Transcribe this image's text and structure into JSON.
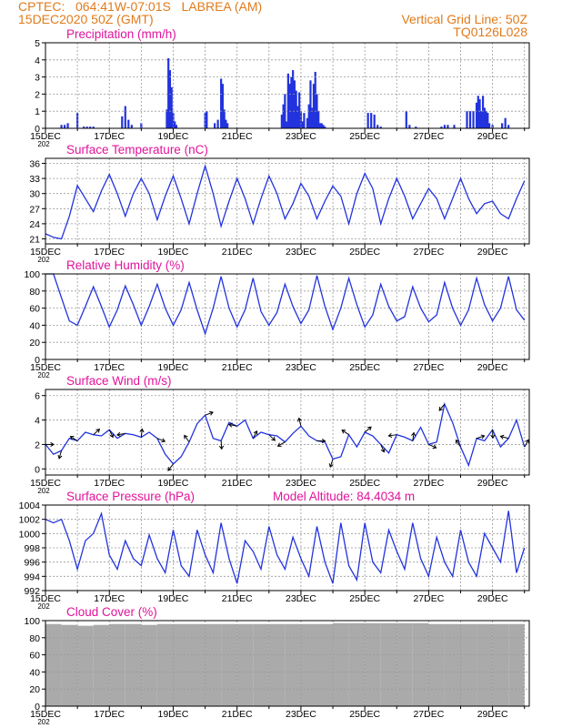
{
  "header": {
    "left_line1": "CPTEC:   064:41W-07:01S   LABREA (AM)",
    "left_line2": "15DEC2020 50Z (GMT)",
    "right_line1": "Vertical Grid Line: 50Z",
    "right_line2": "TQ0126L028",
    "model_altitude": "Model Altitude: 84.4034 m"
  },
  "colors": {
    "line": "#2233dd",
    "title": "#e0149a",
    "header": "#e07b1c",
    "grid": "#999999",
    "cloud": "#aaaaaa",
    "arrow": "#000000"
  },
  "x_ticks": [
    "15DEC",
    "17DEC",
    "19DEC",
    "21DEC",
    "23DEC",
    "25DEC",
    "27DEC",
    "29DEC"
  ],
  "x_year_fragment": "202",
  "chart_data": [
    {
      "id": "precip",
      "type": "bar",
      "title": "Precipitation (mm/h)",
      "ylim": [
        0,
        5
      ],
      "yticks": [
        0,
        1,
        2,
        3,
        4,
        5
      ],
      "x": [
        0.5,
        0.6,
        0.7,
        1.0,
        1.2,
        1.3,
        1.4,
        1.5,
        2.4,
        2.5,
        2.6,
        2.7,
        3.0,
        3.8,
        3.85,
        3.9,
        3.95,
        4.0,
        4.05,
        4.1,
        5.0,
        5.05,
        5.3,
        5.4,
        5.5,
        5.55,
        5.6,
        5.65,
        5.7,
        7.4,
        7.45,
        7.5,
        7.55,
        7.6,
        7.65,
        7.7,
        7.75,
        7.8,
        7.85,
        7.9,
        7.95,
        8.0,
        8.05,
        8.1,
        8.2,
        8.25,
        8.3,
        8.35,
        8.4,
        8.45,
        8.5,
        8.55,
        8.6,
        8.65,
        8.7,
        8.75,
        10.1,
        10.2,
        10.3,
        10.4,
        10.5,
        11.3,
        11.4,
        11.6,
        12.4,
        12.5,
        12.6,
        12.8,
        13.2,
        13.3,
        13.4,
        13.5,
        13.55,
        13.6,
        13.65,
        13.7,
        13.75,
        13.8,
        13.85,
        13.9,
        14.0,
        14.3,
        14.4,
        14.5
      ],
      "values": [
        0.2,
        0.2,
        0.3,
        0.9,
        0.1,
        0.1,
        0.1,
        0.1,
        0.7,
        1.3,
        0.5,
        0.2,
        0.3,
        1.1,
        4.1,
        3.4,
        2.4,
        0.9,
        0.4,
        0.2,
        0.9,
        1.0,
        0.3,
        0.5,
        2.9,
        2.6,
        1.1,
        0.5,
        0.3,
        0.8,
        1.4,
        2.0,
        0.4,
        3.2,
        2.6,
        3.0,
        3.4,
        2.8,
        2.2,
        1.3,
        2.1,
        1.0,
        0.4,
        0.9,
        0.6,
        1.4,
        2.8,
        1.2,
        2.6,
        3.3,
        2.0,
        1.0,
        0.3,
        0.3,
        0.2,
        0.1,
        0.9,
        0.9,
        0.8,
        0.2,
        0.1,
        1.0,
        0.2,
        0.1,
        0.1,
        0.2,
        0.2,
        0.2,
        1.0,
        1.0,
        1.0,
        1.5,
        1.9,
        1.7,
        1.0,
        1.9,
        1.2,
        1.0,
        0.9,
        0.3,
        0.2,
        0.3,
        0.6,
        0.2
      ]
    },
    {
      "id": "temp",
      "type": "line",
      "title": "Surface Temperature (nC)",
      "ylim": [
        20,
        37
      ],
      "yticks": [
        21,
        24,
        27,
        30,
        33,
        36
      ],
      "x": [
        0,
        0.25,
        0.5,
        0.75,
        1.0,
        1.25,
        1.5,
        1.75,
        2.0,
        2.25,
        2.5,
        2.75,
        3.0,
        3.25,
        3.5,
        3.75,
        4.0,
        4.25,
        4.5,
        4.75,
        5.0,
        5.25,
        5.5,
        5.75,
        6.0,
        6.25,
        6.5,
        6.75,
        7.0,
        7.25,
        7.5,
        7.75,
        8.0,
        8.25,
        8.5,
        8.75,
        9.0,
        9.25,
        9.5,
        9.75,
        10.0,
        10.25,
        10.5,
        10.75,
        11.0,
        11.25,
        11.5,
        11.75,
        12.0,
        12.25,
        12.5,
        12.75,
        13.0,
        13.25,
        13.5,
        13.75,
        14.0,
        14.25,
        14.5,
        14.75,
        15.0
      ],
      "values": [
        22.0,
        21.3,
        21.0,
        25.5,
        31.6,
        29.0,
        26.4,
        30.5,
        33.8,
        30.0,
        25.5,
        30.0,
        33.0,
        30.0,
        24.8,
        29.5,
        33.5,
        29.0,
        24.0,
        30.0,
        35.5,
        30.0,
        23.5,
        28.5,
        33.0,
        29.0,
        24.0,
        29.0,
        33.5,
        30.0,
        25.0,
        28.0,
        32.0,
        29.5,
        25.0,
        28.5,
        31.5,
        29.5,
        24.0,
        30.0,
        34.0,
        31.0,
        24.0,
        29.0,
        33.0,
        29.5,
        25.0,
        28.0,
        31.0,
        29.0,
        25.0,
        29.0,
        33.0,
        29.0,
        26.0,
        28.0,
        28.5,
        26.0,
        25.0,
        29.0,
        32.5
      ]
    },
    {
      "id": "rh",
      "type": "line",
      "title": "Relative Humidity (%)",
      "ylim": [
        0,
        100
      ],
      "yticks": [
        0,
        20,
        40,
        60,
        80,
        100
      ],
      "x": [
        0,
        0.25,
        0.5,
        0.75,
        1.0,
        1.25,
        1.5,
        1.75,
        2.0,
        2.25,
        2.5,
        2.75,
        3.0,
        3.25,
        3.5,
        3.75,
        4.0,
        4.25,
        4.5,
        4.75,
        5.0,
        5.25,
        5.5,
        5.75,
        6.0,
        6.25,
        6.5,
        6.75,
        7.0,
        7.25,
        7.5,
        7.75,
        8.0,
        8.25,
        8.5,
        8.75,
        9.0,
        9.25,
        9.5,
        9.75,
        10.0,
        10.25,
        10.5,
        10.75,
        11.0,
        11.25,
        11.5,
        11.75,
        12.0,
        12.25,
        12.5,
        12.75,
        13.0,
        13.25,
        13.5,
        13.75,
        14.0,
        14.25,
        14.5,
        14.75,
        15.0
      ],
      "values": [
        100,
        100,
        72,
        45,
        40,
        62,
        85,
        62,
        38,
        58,
        86,
        64,
        40,
        62,
        88,
        60,
        40,
        58,
        90,
        58,
        30,
        60,
        97,
        60,
        38,
        58,
        95,
        56,
        40,
        55,
        88,
        62,
        42,
        58,
        98,
        62,
        35,
        60,
        95,
        64,
        38,
        52,
        88,
        62,
        45,
        50,
        85,
        60,
        44,
        52,
        90,
        60,
        40,
        58,
        95,
        64,
        45,
        60,
        97,
        58,
        46
      ]
    },
    {
      "id": "wind",
      "type": "line",
      "title": "Surface Wind (m/s)",
      "ylim": [
        -0.5,
        6.5
      ],
      "yticks": [
        0,
        2,
        4,
        6
      ],
      "x": [
        0,
        0.25,
        0.5,
        0.75,
        1.0,
        1.25,
        1.5,
        1.75,
        2.0,
        2.25,
        2.5,
        2.75,
        3.0,
        3.25,
        3.5,
        3.75,
        4.0,
        4.25,
        4.5,
        4.75,
        5.0,
        5.25,
        5.5,
        5.75,
        6.0,
        6.25,
        6.5,
        6.75,
        7.0,
        7.25,
        7.5,
        7.75,
        8.0,
        8.25,
        8.5,
        8.75,
        9.0,
        9.25,
        9.5,
        9.75,
        10.0,
        10.25,
        10.5,
        10.75,
        11.0,
        11.25,
        11.5,
        11.75,
        12.0,
        12.25,
        12.5,
        12.75,
        13.0,
        13.25,
        13.5,
        13.75,
        14.0,
        14.25,
        14.5,
        14.75,
        15.0
      ],
      "values": [
        2.0,
        1.2,
        1.5,
        2.5,
        2.3,
        3.0,
        2.8,
        2.7,
        3.2,
        2.5,
        2.9,
        2.8,
        2.6,
        3.0,
        2.5,
        1.2,
        0.4,
        1.0,
        2.2,
        3.7,
        4.4,
        2.5,
        2.3,
        3.8,
        3.5,
        4.0,
        2.5,
        3.0,
        2.8,
        2.7,
        2.2,
        2.9,
        3.5,
        2.7,
        2.3,
        2.2,
        0.8,
        1.0,
        2.8,
        1.8,
        3.0,
        2.7,
        2.0,
        1.3,
        2.8,
        2.6,
        2.3,
        3.4,
        2.0,
        2.2,
        5.3,
        3.8,
        1.8,
        0.3,
        2.5,
        2.3,
        3.2,
        1.8,
        2.5,
        4.0,
        1.8
      ]
    },
    {
      "id": "pressure",
      "type": "line",
      "title": "Surface Pressure (hPa)",
      "ylim": [
        992,
        1004
      ],
      "yticks": [
        992,
        994,
        996,
        998,
        1000,
        1002,
        1004
      ],
      "x": [
        0,
        0.25,
        0.5,
        0.75,
        1.0,
        1.25,
        1.5,
        1.75,
        2.0,
        2.25,
        2.5,
        2.75,
        3.0,
        3.25,
        3.5,
        3.75,
        4.0,
        4.25,
        4.5,
        4.75,
        5.0,
        5.25,
        5.5,
        5.75,
        6.0,
        6.25,
        6.5,
        6.75,
        7.0,
        7.25,
        7.5,
        7.75,
        8.0,
        8.25,
        8.5,
        8.75,
        9.0,
        9.25,
        9.5,
        9.75,
        10.0,
        10.25,
        10.5,
        10.75,
        11.0,
        11.25,
        11.5,
        11.75,
        12.0,
        12.25,
        12.5,
        12.75,
        13.0,
        13.25,
        13.5,
        13.75,
        14.0,
        14.25,
        14.5,
        14.75,
        15.0
      ],
      "values": [
        1002.0,
        1001.5,
        1002.0,
        999.0,
        995.0,
        999.0,
        1000.0,
        1002.8,
        997.0,
        995.0,
        999.0,
        996.5,
        995.5,
        999.8,
        996.5,
        994.5,
        1000.5,
        995.5,
        994.0,
        1000.5,
        997.0,
        994.5,
        1001.5,
        996.5,
        993.0,
        999.0,
        997.5,
        995.0,
        1001.0,
        997.0,
        995.0,
        999.5,
        996.5,
        994.0,
        1001.0,
        996.0,
        993.0,
        1001.5,
        995.5,
        993.5,
        1001.5,
        996.0,
        994.5,
        1000.5,
        997.5,
        995.0,
        1001.5,
        996.5,
        994.0,
        999.5,
        996.0,
        994.0,
        1000.5,
        996.0,
        994.0,
        1000.0,
        998.0,
        996.0,
        1003.2,
        994.5,
        998.0
      ]
    },
    {
      "id": "cloud",
      "type": "bar",
      "title": "Cloud Cover (%)",
      "ylim": [
        0,
        100
      ],
      "yticks": [
        0,
        20,
        40,
        60,
        80,
        100
      ],
      "x": [
        0,
        0.5,
        1.0,
        1.5,
        2.0,
        2.5,
        3.0,
        3.5,
        4.0,
        4.5,
        5.0,
        5.5,
        6.0,
        6.5,
        7.0,
        7.5,
        8.0,
        8.5,
        9.0,
        9.5,
        10.0,
        10.5,
        11.0,
        11.5,
        12.0,
        12.5,
        13.0,
        13.5,
        14.0,
        14.5
      ],
      "values": [
        96,
        95,
        94,
        95,
        96,
        96,
        95,
        96,
        96,
        96,
        96,
        96,
        96,
        96,
        96,
        96,
        96,
        96,
        97,
        97,
        97,
        97,
        97,
        97,
        96,
        96,
        96,
        96,
        96,
        96
      ]
    }
  ]
}
